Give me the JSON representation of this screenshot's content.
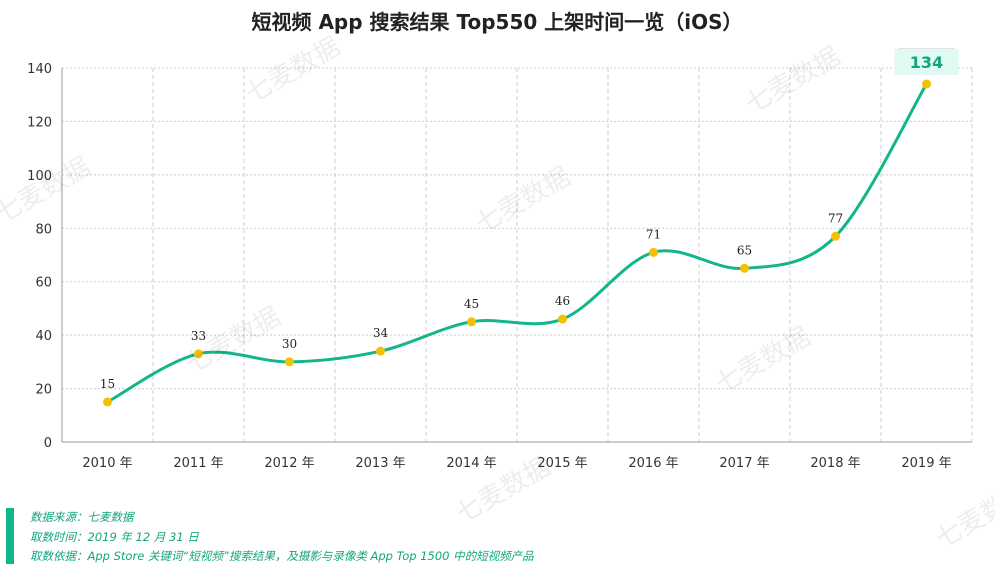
{
  "chart_data": {
    "type": "line",
    "title": "短视频 App 搜索结果 Top550 上架时间一览（iOS）",
    "categories": [
      "2010 年",
      "2011 年",
      "2012 年",
      "2013 年",
      "2014 年",
      "2015 年",
      "2016 年",
      "2017 年",
      "2018 年",
      "2019 年"
    ],
    "values": [
      15,
      33,
      30,
      34,
      45,
      46,
      71,
      65,
      77,
      134
    ],
    "ylim": [
      0,
      140
    ],
    "yticks": [
      0,
      20,
      40,
      60,
      80,
      100,
      120,
      140
    ],
    "grid": true,
    "smooth": true,
    "highlight_index": 9,
    "colors": {
      "line": "#13b58a",
      "marker": "#f5c000",
      "highlight_bg": "#e0faf3",
      "highlight_text": "#13a57e"
    }
  },
  "footer": {
    "source": "数据来源：七麦数据",
    "date": "取数时间：2019 年 12 月 31 日",
    "basis": "取数依据：App Store 关键词“短视频”搜索结果，及摄影与录像类 App Top 1500 中的短视频产品"
  },
  "watermark": "七麦数据"
}
